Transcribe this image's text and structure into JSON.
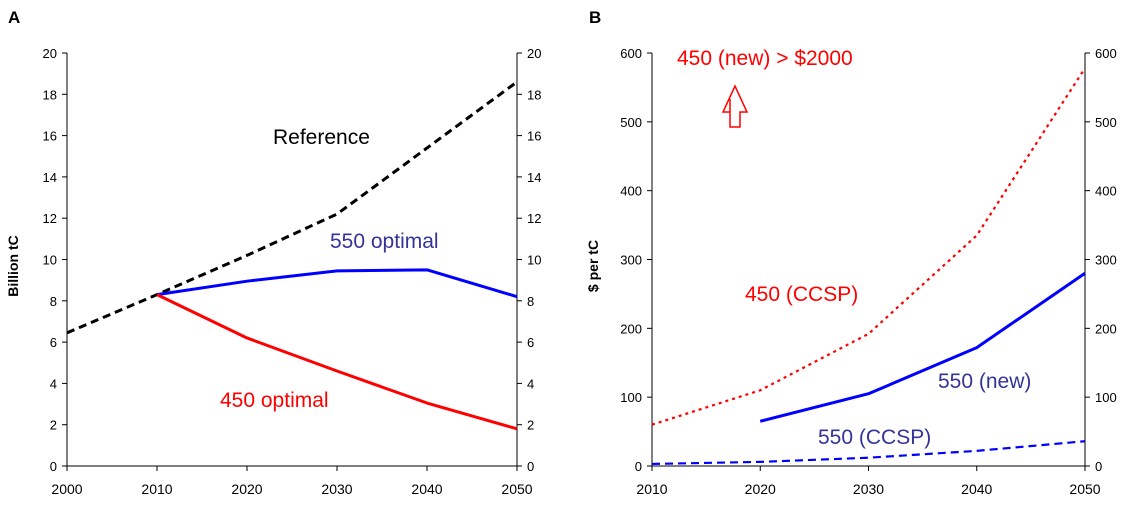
{
  "chart_data": [
    {
      "type": "line",
      "panel_label": "A",
      "ylabel": "Billion tC",
      "x_ticks": [
        "2000",
        "2010",
        "2020",
        "2030",
        "2040",
        "2050"
      ],
      "y_ticks": [
        "0",
        "2",
        "4",
        "6",
        "8",
        "10",
        "12",
        "14",
        "16",
        "18",
        "20"
      ],
      "xlim": [
        2000,
        2050
      ],
      "ylim": [
        0,
        20
      ],
      "grid": false,
      "series": [
        {
          "name": "Reference",
          "color": "#000000",
          "style": "dashed",
          "x": [
            2000,
            2010,
            2020,
            2030,
            2040,
            2050
          ],
          "y": [
            6.45,
            8.3,
            10.2,
            12.2,
            15.4,
            18.6
          ]
        },
        {
          "name": "550 optimal",
          "color": "#0000ff",
          "style": "solid",
          "x": [
            2010,
            2020,
            2030,
            2040,
            2050
          ],
          "y": [
            8.3,
            8.95,
            9.45,
            9.5,
            8.2
          ]
        },
        {
          "name": "450 optimal",
          "color": "#ff0000",
          "style": "solid",
          "x": [
            2010,
            2020,
            2030,
            2040,
            2050
          ],
          "y": [
            8.3,
            6.2,
            4.6,
            3.05,
            1.8
          ]
        }
      ],
      "annotations": [
        {
          "text": "Reference",
          "color": "#000000"
        },
        {
          "text": "550 optimal",
          "color": "#333399"
        },
        {
          "text": "450 optimal",
          "color": "#ff0000"
        }
      ]
    },
    {
      "type": "line",
      "panel_label": "B",
      "ylabel": "$ per tC",
      "x_ticks": [
        "2010",
        "2020",
        "2030",
        "2040",
        "2050"
      ],
      "y_ticks": [
        "0",
        "100",
        "200",
        "300",
        "400",
        "500",
        "600"
      ],
      "xlim": [
        2010,
        2050
      ],
      "ylim": [
        0,
        600
      ],
      "grid": false,
      "series": [
        {
          "name": "450 (CCSP)",
          "color": "#ff0000",
          "style": "dotted",
          "x": [
            2010,
            2020,
            2030,
            2040,
            2050
          ],
          "y": [
            60,
            110,
            192,
            335,
            578
          ]
        },
        {
          "name": "550 (new)",
          "color": "#0000ff",
          "style": "solid",
          "x": [
            2020,
            2030,
            2040,
            2050
          ],
          "y": [
            65,
            105,
            172,
            280
          ]
        },
        {
          "name": "550 (CCSP)",
          "color": "#0000ff",
          "style": "dashed",
          "x": [
            2010,
            2020,
            2030,
            2040,
            2050
          ],
          "y": [
            3,
            6,
            12,
            22,
            36
          ]
        }
      ],
      "annotations": [
        {
          "text": "450 (new) > $2000",
          "color": "#ff0000"
        },
        {
          "text": "450 (CCSP)",
          "color": "#ff0000"
        },
        {
          "text": "550 (new)",
          "color": "#333399"
        },
        {
          "text": "550 (CCSP)",
          "color": "#333399"
        }
      ],
      "arrow": {
        "direction": "up",
        "color": "#ff0000",
        "style": "hollow"
      }
    }
  ]
}
